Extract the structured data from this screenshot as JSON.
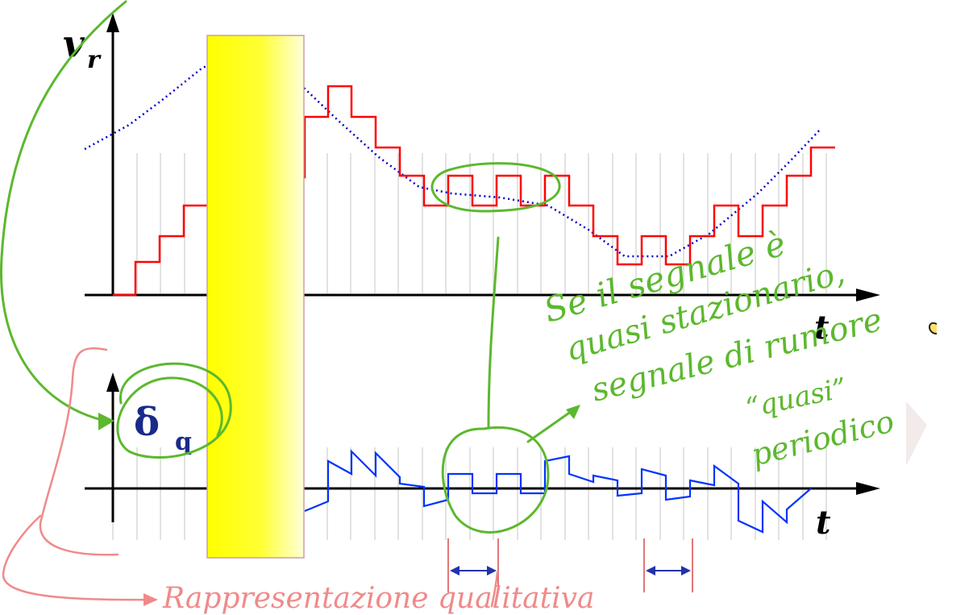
{
  "diagram": {
    "top_plot": {
      "y_label": "v",
      "y_label_sub": "r",
      "x_label": "t"
    },
    "bottom_plot": {
      "y_label": "δ",
      "y_label_sub": "q",
      "x_label": "t"
    },
    "annotations": {
      "line1": "Se il segnale è",
      "line2": "quasi stazionario,",
      "line3": "segnale di rumore",
      "line4": "“quasi”",
      "line5": "periodico",
      "bottom": "Rappresentazione qualitativa"
    },
    "colors": {
      "quantized_signal": "#ff0000",
      "analog_signal": "#0000cc",
      "error_signal": "#0033ff",
      "handwriting_green": "#5cb82e",
      "handwriting_pink": "#f08a8a",
      "highlight_bar_top": "#ffff00",
      "highlight_bar_bottom": "#ffffcc"
    }
  }
}
